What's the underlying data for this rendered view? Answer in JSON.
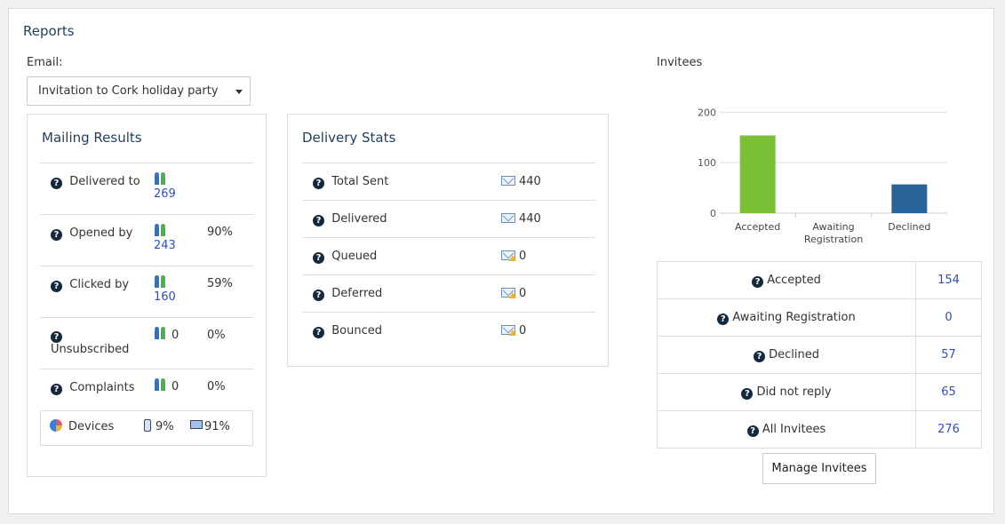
{
  "header": {
    "title": "Reports"
  },
  "email": {
    "label": "Email:",
    "selected": "Invitation to Cork holiday party"
  },
  "mailing_results": {
    "title": "Mailing Results",
    "rows": [
      {
        "label": "Delivered to",
        "count": "269",
        "percent": ""
      },
      {
        "label": "Opened by",
        "count": "243",
        "percent": "90%"
      },
      {
        "label": "Clicked by",
        "count": "160",
        "percent": "59%"
      },
      {
        "label": "Unsubscribed",
        "count": "0",
        "percent": "0%"
      },
      {
        "label": "Complaints",
        "count": "0",
        "percent": "0%"
      }
    ],
    "devices": {
      "label": "Devices",
      "mobile": "9%",
      "desktop": "91%"
    }
  },
  "delivery_stats": {
    "title": "Delivery Stats",
    "rows": [
      {
        "label": "Total Sent",
        "value": "440",
        "icon": "envelope-icon"
      },
      {
        "label": "Delivered",
        "value": "440",
        "icon": "envelope-icon"
      },
      {
        "label": "Queued",
        "value": "0",
        "icon": "envelope-warning-icon"
      },
      {
        "label": "Deferred",
        "value": "0",
        "icon": "envelope-warning-icon"
      },
      {
        "label": "Bounced",
        "value": "0",
        "icon": "envelope-warning-icon"
      }
    ]
  },
  "invitees": {
    "label": "Invitees",
    "table": [
      {
        "label": "Accepted",
        "value": "154"
      },
      {
        "label": "Awaiting Registration",
        "value": "0"
      },
      {
        "label": "Declined",
        "value": "57"
      },
      {
        "label": "Did not reply",
        "value": "65"
      },
      {
        "label": "All Invitees",
        "value": "276"
      }
    ],
    "manage_button": "Manage Invitees"
  },
  "chart_data": {
    "type": "bar",
    "categories": [
      "Accepted",
      "Awaiting\nRegistration",
      "Declined"
    ],
    "values": [
      154,
      0,
      57
    ],
    "colors": [
      "#7abf35",
      "#7abf35",
      "#2a6496"
    ],
    "yticks": [
      0,
      100,
      200
    ],
    "ylim": [
      0,
      220
    ],
    "title": "",
    "xlabel": "",
    "ylabel": ""
  }
}
